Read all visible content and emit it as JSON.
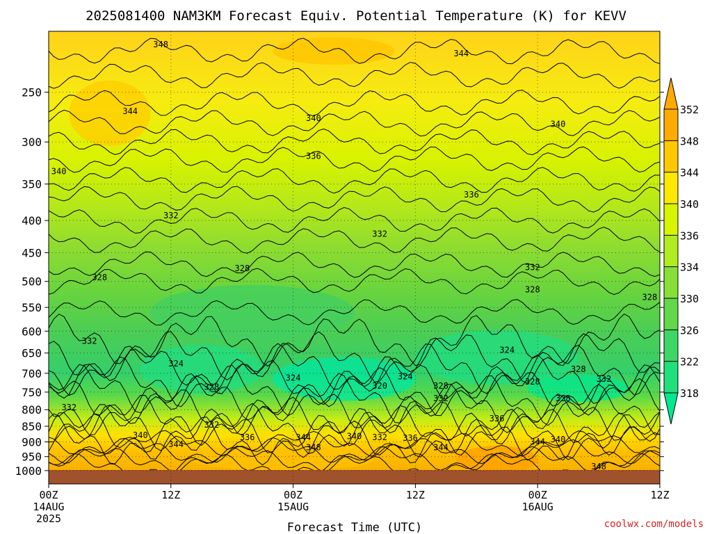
{
  "chart_data": {
    "type": "heatmap",
    "title": "2025081400 NAM3KM Forecast Equiv. Potential Temperature (K) for KEVV",
    "xlabel": "Forecast Time (UTC)",
    "ylabel": "",
    "credit": "coolwx.com/models",
    "y_axis": {
      "scale": "log-pressure",
      "range": [
        1050,
        200
      ],
      "ticks": [
        250,
        300,
        350,
        400,
        450,
        500,
        550,
        600,
        650,
        700,
        750,
        800,
        850,
        900,
        950,
        1000
      ]
    },
    "x_axis": {
      "range_hours": [
        0,
        60
      ],
      "ticks": [
        {
          "hour": 0,
          "lines": [
            "00Z",
            "14AUG",
            "2025"
          ]
        },
        {
          "hour": 12,
          "lines": [
            "12Z"
          ]
        },
        {
          "hour": 24,
          "lines": [
            "00Z",
            "15AUG"
          ]
        },
        {
          "hour": 36,
          "lines": [
            "12Z"
          ]
        },
        {
          "hour": 48,
          "lines": [
            "00Z",
            "16AUG"
          ]
        },
        {
          "hour": 60,
          "lines": [
            "12Z"
          ]
        }
      ]
    },
    "grid": true,
    "colorbar": {
      "levels": [
        318,
        322,
        326,
        330,
        334,
        336,
        340,
        344,
        348,
        352
      ],
      "colors": [
        "#00e890",
        "#1fe07a",
        "#3ed766",
        "#62d84a",
        "#86e036",
        "#b0ec20",
        "#d8f500",
        "#ffe800",
        "#ffc800",
        "#ffaa00"
      ]
    },
    "contour_labels": [
      {
        "value": "348",
        "hour": 11.0,
        "p": 210
      },
      {
        "value": "344",
        "hour": 40.5,
        "p": 217
      },
      {
        "value": "344",
        "hour": 8.0,
        "p": 268
      },
      {
        "value": "340",
        "hour": 26.0,
        "p": 275
      },
      {
        "value": "340",
        "hour": 50.0,
        "p": 281
      },
      {
        "value": "336",
        "hour": 26.0,
        "p": 316
      },
      {
        "value": "340",
        "hour": 1.0,
        "p": 334
      },
      {
        "value": "336",
        "hour": 41.5,
        "p": 364
      },
      {
        "value": "332",
        "hour": 12.0,
        "p": 393
      },
      {
        "value": "332",
        "hour": 32.5,
        "p": 420
      },
      {
        "value": "328",
        "hour": 19.0,
        "p": 477
      },
      {
        "value": "332",
        "hour": 47.5,
        "p": 475
      },
      {
        "value": "328",
        "hour": 5.0,
        "p": 493
      },
      {
        "value": "328",
        "hour": 47.5,
        "p": 515
      },
      {
        "value": "328",
        "hour": 59.0,
        "p": 530
      },
      {
        "value": "332",
        "hour": 4.0,
        "p": 622
      },
      {
        "value": "324",
        "hour": 45.0,
        "p": 643
      },
      {
        "value": "324",
        "hour": 12.5,
        "p": 676
      },
      {
        "value": "328",
        "hour": 52.0,
        "p": 690
      },
      {
        "value": "324",
        "hour": 24.0,
        "p": 712
      },
      {
        "value": "324",
        "hour": 35.0,
        "p": 708
      },
      {
        "value": "332",
        "hour": 54.5,
        "p": 715
      },
      {
        "value": "328",
        "hour": 16.0,
        "p": 736
      },
      {
        "value": "320",
        "hour": 32.5,
        "p": 733
      },
      {
        "value": "328",
        "hour": 38.5,
        "p": 733
      },
      {
        "value": "328",
        "hour": 47.5,
        "p": 722
      },
      {
        "value": "332",
        "hour": 38.5,
        "p": 768
      },
      {
        "value": "328",
        "hour": 50.5,
        "p": 768
      },
      {
        "value": "332",
        "hour": 2.0,
        "p": 793
      },
      {
        "value": "336",
        "hour": 44.0,
        "p": 826
      },
      {
        "value": "332",
        "hour": 16.0,
        "p": 846
      },
      {
        "value": "340",
        "hour": 9.0,
        "p": 878
      },
      {
        "value": "336",
        "hour": 19.5,
        "p": 885
      },
      {
        "value": "344",
        "hour": 25.0,
        "p": 885
      },
      {
        "value": "340",
        "hour": 30.0,
        "p": 882
      },
      {
        "value": "332",
        "hour": 32.5,
        "p": 885
      },
      {
        "value": "336",
        "hour": 35.5,
        "p": 888
      },
      {
        "value": "344",
        "hour": 48.0,
        "p": 900
      },
      {
        "value": "340",
        "hour": 50.0,
        "p": 892
      },
      {
        "value": "344",
        "hour": 12.5,
        "p": 908
      },
      {
        "value": "348",
        "hour": 26.0,
        "p": 918
      },
      {
        "value": "344",
        "hour": 38.5,
        "p": 918
      },
      {
        "value": "348",
        "hour": 54.0,
        "p": 985
      }
    ]
  }
}
